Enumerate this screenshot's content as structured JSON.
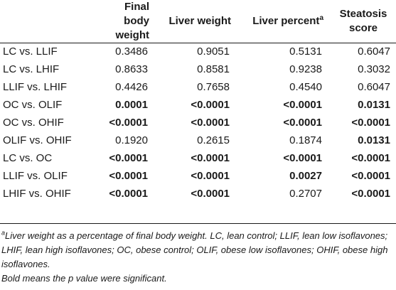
{
  "headers": {
    "col0": "",
    "col1_line1": "Final",
    "col1_line2": "body weight",
    "col2": "Liver weight",
    "col3": "Liver percent",
    "col3_sup": "a",
    "col4_line1": "Steatosis",
    "col4_line2": "score"
  },
  "rows": [
    {
      "label": "LC vs. LLIF",
      "final_bw": "0.3486",
      "liver_wt": "0.9051",
      "liver_pct": "0.5131",
      "steatosis": "0.6047"
    },
    {
      "label": "LC vs. LHIF",
      "final_bw": "0.8633",
      "liver_wt": "0.8581",
      "liver_pct": "0.9238",
      "steatosis": "0.3032"
    },
    {
      "label": "LLIF vs. LHIF",
      "final_bw": "0.4426",
      "liver_wt": "0.7658",
      "liver_pct": "0.4540",
      "steatosis": "0.6047"
    },
    {
      "label": "OC vs. OLIF",
      "final_bw": "0.0001",
      "liver_wt": "<0.0001",
      "liver_pct": "<0.0001",
      "steatosis": "0.0131"
    },
    {
      "label": "OC vs. OHIF",
      "final_bw": "<0.0001",
      "liver_wt": "<0.0001",
      "liver_pct": "<0.0001",
      "steatosis": "<0.0001"
    },
    {
      "label": "OLIF vs. OHIF",
      "final_bw": "0.1920",
      "liver_wt": "0.2615",
      "liver_pct": "0.1874",
      "steatosis": "0.0131"
    },
    {
      "label": "LC vs. OC",
      "final_bw": "<0.0001",
      "liver_wt": "<0.0001",
      "liver_pct": "<0.0001",
      "steatosis": "<0.0001"
    },
    {
      "label": "LLIF vs. OLIF",
      "final_bw": "<0.0001",
      "liver_wt": "<0.0001",
      "liver_pct": "0.0027",
      "steatosis": "<0.0001"
    },
    {
      "label": "LHIF vs. OHIF",
      "final_bw": "<0.0001",
      "liver_wt": "<0.0001",
      "liver_pct": "0.2707",
      "steatosis": "<0.0001"
    }
  ],
  "footnote": {
    "sup": "a",
    "line1": "Liver weight as a percentage of final body weight. LC, lean control; LLIF, lean low isoflavones; LHIF, lean high isoflavones; OC, obese control; OLIF, obese low isoflavones; OHIF, obese high isoflavones.",
    "line2": "Bold means the p value were significant."
  }
}
